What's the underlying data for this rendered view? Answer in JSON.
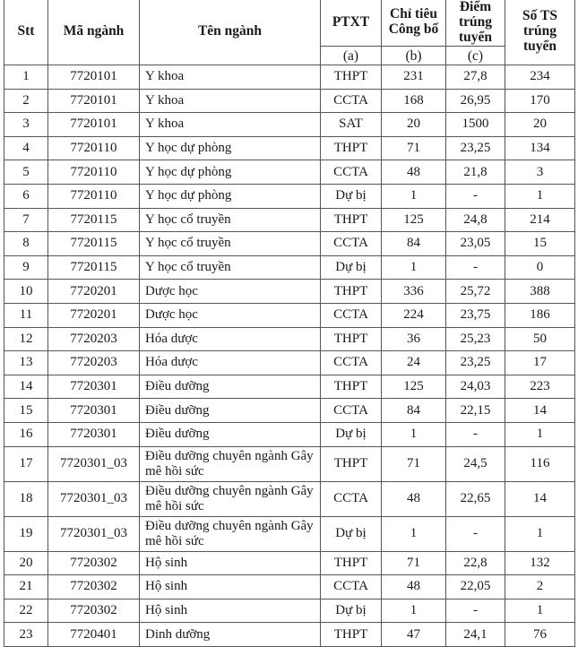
{
  "headers": {
    "stt": "Stt",
    "ma_nganh": "Mã ngành",
    "ten_nganh": "Tên ngành",
    "ptxt": "PTXT",
    "chi_tieu": "Chỉ tiêu Công bố",
    "diem": "Điểm trúng tuyển",
    "so_ts": "Số TS trúng tuyển",
    "sub_a": "(a)",
    "sub_b": "(b)",
    "sub_c": "(c)"
  },
  "rows": [
    [
      "1",
      "7720101",
      "Y khoa",
      "THPT",
      "231",
      "27,8",
      "234"
    ],
    [
      "2",
      "7720101",
      "Y khoa",
      "CCTA",
      "168",
      "26,95",
      "170"
    ],
    [
      "3",
      "7720101",
      "Y khoa",
      "SAT",
      "20",
      "1500",
      "20"
    ],
    [
      "4",
      "7720110",
      "Y học dự phòng",
      "THPT",
      "71",
      "23,25",
      "134"
    ],
    [
      "5",
      "7720110",
      "Y học dự phòng",
      "CCTA",
      "48",
      "21,8",
      "3"
    ],
    [
      "6",
      "7720110",
      "Y học dự phòng",
      "Dự bị",
      "1",
      "-",
      "1"
    ],
    [
      "7",
      "7720115",
      "Y học cổ truyền",
      "THPT",
      "125",
      "24,8",
      "214"
    ],
    [
      "8",
      "7720115",
      "Y học cổ truyền",
      "CCTA",
      "84",
      "23,05",
      "15"
    ],
    [
      "9",
      "7720115",
      "Y học cổ truyền",
      "Dự bị",
      "1",
      "-",
      "0"
    ],
    [
      "10",
      "7720201",
      "Dược học",
      "THPT",
      "336",
      "25,72",
      "388"
    ],
    [
      "11",
      "7720201",
      "Dược học",
      "CCTA",
      "224",
      "23,75",
      "186"
    ],
    [
      "12",
      "7720203",
      "Hóa dược",
      "THPT",
      "36",
      "25,23",
      "50"
    ],
    [
      "13",
      "7720203",
      "Hóa dược",
      "CCTA",
      "24",
      "23,25",
      "17"
    ],
    [
      "14",
      "7720301",
      "Điều dưỡng",
      "THPT",
      "125",
      "24,03",
      "223"
    ],
    [
      "15",
      "7720301",
      "Điều dưỡng",
      "CCTA",
      "84",
      "22,15",
      "14"
    ],
    [
      "16",
      "7720301",
      "Điều dưỡng",
      "Dự bị",
      "1",
      "-",
      "1"
    ],
    [
      "17",
      "7720301_03",
      "Điều dưỡng chuyên ngành Gây mê hồi sức",
      "THPT",
      "71",
      "24,5",
      "116"
    ],
    [
      "18",
      "7720301_03",
      "Điều dưỡng chuyên ngành Gây mê hồi sức",
      "CCTA",
      "48",
      "22,65",
      "14"
    ],
    [
      "19",
      "7720301_03",
      "Điều dưỡng chuyên ngành Gây mê hồi sức",
      "Dự bị",
      "1",
      "-",
      "1"
    ],
    [
      "20",
      "7720302",
      "Hộ sinh",
      "THPT",
      "71",
      "22,8",
      "132"
    ],
    [
      "21",
      "7720302",
      "Hộ sinh",
      "CCTA",
      "48",
      "22,05",
      "2"
    ],
    [
      "22",
      "7720302",
      "Hộ sinh",
      "Dự bị",
      "1",
      "-",
      "1"
    ],
    [
      "23",
      "7720401",
      "Dinh dưỡng",
      "THPT",
      "47",
      "24,1",
      "76"
    ]
  ]
}
